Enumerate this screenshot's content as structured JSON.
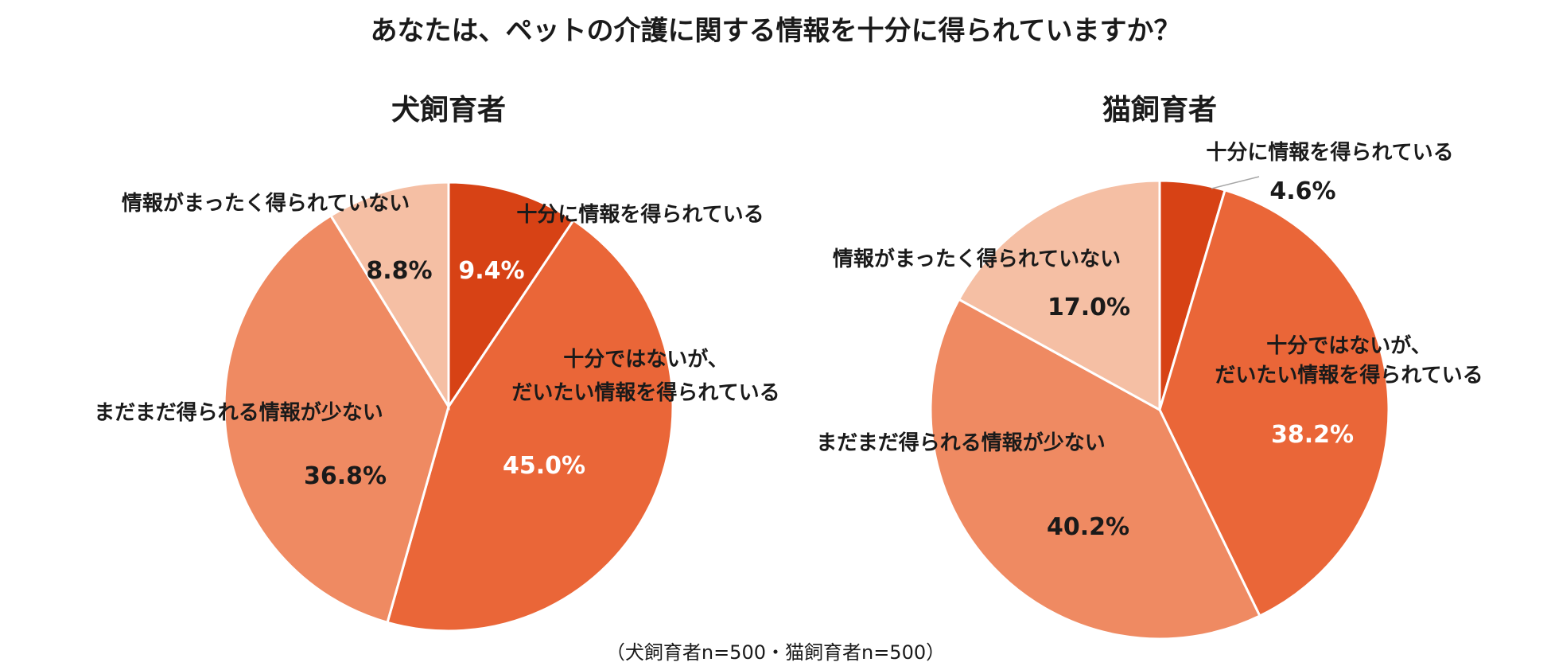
{
  "title": "あなたは、ペットの介護に関する情報を十分に得られていますか？",
  "footnote": "（犬飼育者n=500・猫飼育者n=500）",
  "colors": {
    "十分に情報を得られている": "#d74215",
    "十分ではないが、だいたい情報を得られている": "#ea6638",
    "まだまだ得られる情報が少ない": "#ef8a62",
    "情報がまったく得られていない": "#f5bfa4",
    "label_dark": "#1a1a1a",
    "label_light": "#ffffff",
    "leader_line": "#a6a6a6"
  },
  "chart_data": [
    {
      "type": "pie",
      "title": "犬飼育者",
      "start": "12 o'clock",
      "direction": "clockwise",
      "slices": [
        {
          "label": "十分に情報を得られている",
          "value": 9.4,
          "value_label": "9.4%"
        },
        {
          "label": "十分ではないが、だいたい情報を得られている",
          "value": 45.0,
          "value_label": "45.0%"
        },
        {
          "label": "まだまだ得られる情報が少ない",
          "value": 36.8,
          "value_label": "36.8%"
        },
        {
          "label": "情報がまったく得られていない",
          "value": 8.8,
          "value_label": "8.8%"
        }
      ]
    },
    {
      "type": "pie",
      "title": "猫飼育者",
      "start": "12 o'clock",
      "direction": "clockwise",
      "slices": [
        {
          "label": "十分に情報を得られている",
          "value": 4.6,
          "value_label": "4.6%"
        },
        {
          "label": "十分ではないが、だいたい情報を得られている",
          "value": 38.2,
          "value_label": "38.2%"
        },
        {
          "label": "まだまだ得られる情報が少ない",
          "value": 40.2,
          "value_label": "40.2%"
        },
        {
          "label": "情報がまったく得られていない",
          "value": 17.0,
          "value_label": "17.0%"
        }
      ]
    }
  ]
}
